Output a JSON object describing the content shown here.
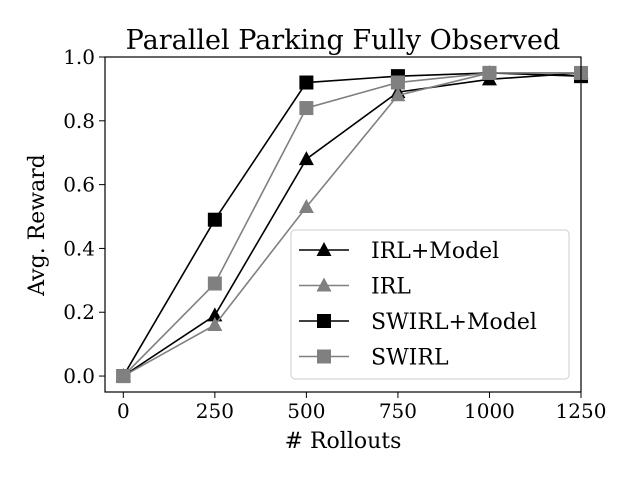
{
  "chart_data": {
    "type": "line",
    "title": "Parallel Parking Fully Observed",
    "xlabel": "# Rollouts",
    "ylabel": "Avg. Reward",
    "xlim": [
      -50,
      1250
    ],
    "ylim": [
      -0.05,
      1.0
    ],
    "xticks": [
      0,
      250,
      500,
      750,
      1000,
      1250
    ],
    "yticks": [
      0.0,
      0.2,
      0.4,
      0.6,
      0.8,
      1.0
    ],
    "xtick_labels": [
      "0",
      "250",
      "500",
      "750",
      "1000",
      "1250"
    ],
    "ytick_labels": [
      "0.0",
      "0.2",
      "0.4",
      "0.6",
      "0.8",
      "1.0"
    ],
    "grid": false,
    "legend_position": "lower-right",
    "x": [
      0,
      250,
      500,
      750,
      1000,
      1250
    ],
    "series": [
      {
        "name": "IRL+Model",
        "color": "#000000",
        "marker": "triangle",
        "values": [
          0.0,
          0.19,
          0.68,
          0.89,
          0.93,
          0.95
        ]
      },
      {
        "name": "IRL",
        "color": "#808080",
        "marker": "triangle",
        "values": [
          0.0,
          0.16,
          0.53,
          0.88,
          0.95,
          0.95
        ]
      },
      {
        "name": "SWIRL+Model",
        "color": "#000000",
        "marker": "square",
        "values": [
          0.0,
          0.49,
          0.92,
          0.94,
          0.95,
          0.94
        ]
      },
      {
        "name": "SWIRL",
        "color": "#808080",
        "marker": "square",
        "values": [
          0.0,
          0.29,
          0.84,
          0.92,
          0.95,
          0.95
        ]
      }
    ]
  }
}
